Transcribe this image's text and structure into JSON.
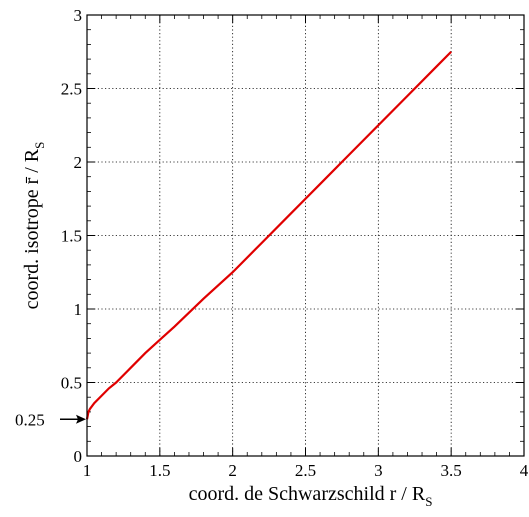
{
  "chart_data": {
    "type": "line",
    "title": "",
    "xlabel": {
      "main": "coord. de Schwarzschild  r / R",
      "sub": "S"
    },
    "ylabel": {
      "main": "coord. isotrope  r̄ / R",
      "sub": "S"
    },
    "xlim": [
      1,
      4
    ],
    "ylim": [
      0,
      3
    ],
    "x_ticks": [
      {
        "value": 1,
        "label": "1"
      },
      {
        "value": 1.5,
        "label": "1.5"
      },
      {
        "value": 2,
        "label": "2"
      },
      {
        "value": 2.5,
        "label": "2.5"
      },
      {
        "value": 3,
        "label": "3"
      },
      {
        "value": 3.5,
        "label": "3.5"
      },
      {
        "value": 4,
        "label": "4"
      }
    ],
    "y_ticks": [
      {
        "value": 0,
        "label": "0"
      },
      {
        "value": 0.5,
        "label": "0.5"
      },
      {
        "value": 1,
        "label": "1"
      },
      {
        "value": 1.5,
        "label": "1.5"
      },
      {
        "value": 2,
        "label": "2"
      },
      {
        "value": 2.5,
        "label": "2.5"
      },
      {
        "value": 3,
        "label": "3"
      }
    ],
    "grid": true,
    "grid_style": "dotted",
    "series": [
      {
        "color": "#e00000",
        "x": [
          1.0,
          1.01,
          1.02,
          1.05,
          1.1,
          1.15,
          1.2,
          1.3,
          1.4,
          1.5,
          1.6,
          1.8,
          2.0,
          2.2,
          2.4,
          2.5,
          2.6,
          2.8,
          3.0,
          3.2,
          3.4,
          3.5
        ],
        "y": [
          0.25,
          0.3,
          0.32,
          0.36,
          0.41,
          0.46,
          0.5,
          0.6,
          0.7,
          0.79,
          0.88,
          1.07,
          1.25,
          1.45,
          1.65,
          1.75,
          1.85,
          2.05,
          2.25,
          2.45,
          2.65,
          2.75
        ]
      }
    ],
    "annotation": {
      "label": "0.25",
      "y": 0.25,
      "arrow_color": "#000000"
    }
  }
}
